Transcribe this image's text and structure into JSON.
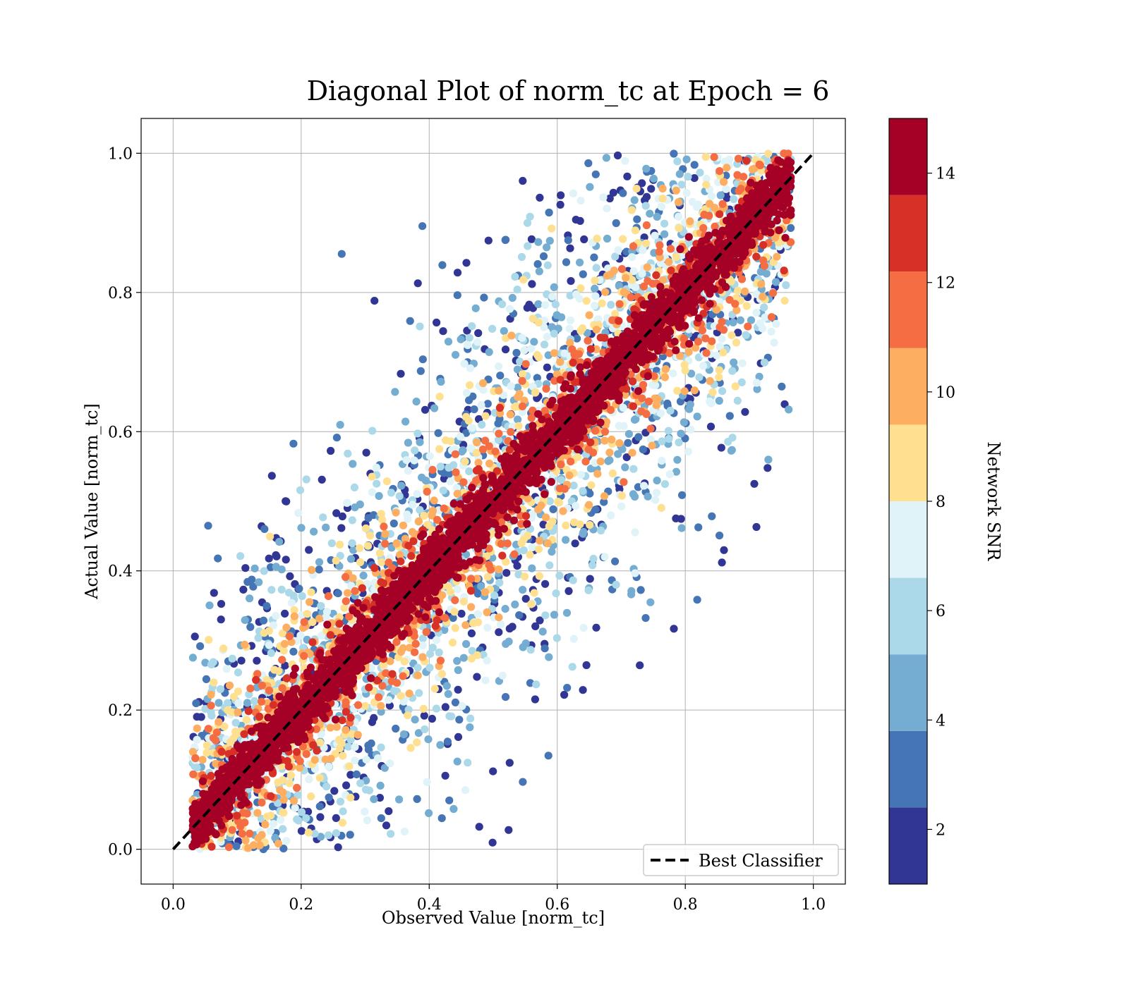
{
  "chart_data": {
    "type": "scatter",
    "title": "Diagonal Plot of norm_tc at Epoch = 6",
    "xlabel": "Observed Value [norm_tc]",
    "ylabel": "Actual Value [norm_tc]",
    "xlim": [
      -0.05,
      1.05
    ],
    "ylim": [
      -0.05,
      1.05
    ],
    "x_ticks": [
      "0.0",
      "0.2",
      "0.4",
      "0.6",
      "0.8",
      "1.0"
    ],
    "y_ticks": [
      "0.0",
      "0.2",
      "0.4",
      "0.6",
      "0.8",
      "1.0"
    ],
    "grid": true,
    "legend": {
      "position": "lower-right",
      "entries": [
        "Best Classifier"
      ]
    },
    "reference_line": {
      "name": "Best Classifier",
      "from": [
        0.0,
        0.0
      ],
      "to": [
        1.0,
        1.0
      ],
      "style": "dashed",
      "color": "#000000"
    },
    "points_description": "Dense scatter of ~100k points concentrated along the diagonal; high-SNR points (dark red) lie near the diagonal, low-SNR points (blue) spread away from it. Observed values range roughly 0.03–0.97.",
    "colorbar": {
      "label": "Network SNR",
      "range": [
        1,
        15
      ],
      "ticks": [
        "2",
        "4",
        "6",
        "8",
        "10",
        "12",
        "14"
      ],
      "bins": [
        {
          "from": 1.0,
          "to": 2.4,
          "color": "#313695"
        },
        {
          "from": 2.4,
          "to": 3.8,
          "color": "#4575b4"
        },
        {
          "from": 3.8,
          "to": 5.2,
          "color": "#74add1"
        },
        {
          "from": 5.2,
          "to": 6.6,
          "color": "#abd9e9"
        },
        {
          "from": 6.6,
          "to": 8.0,
          "color": "#e0f3f8"
        },
        {
          "from": 8.0,
          "to": 9.4,
          "color": "#fee090"
        },
        {
          "from": 9.4,
          "to": 10.8,
          "color": "#fdae61"
        },
        {
          "from": 10.8,
          "to": 12.2,
          "color": "#f46d43"
        },
        {
          "from": 12.2,
          "to": 13.6,
          "color": "#d73027"
        },
        {
          "from": 13.6,
          "to": 15.0,
          "color": "#a50026"
        }
      ]
    }
  }
}
